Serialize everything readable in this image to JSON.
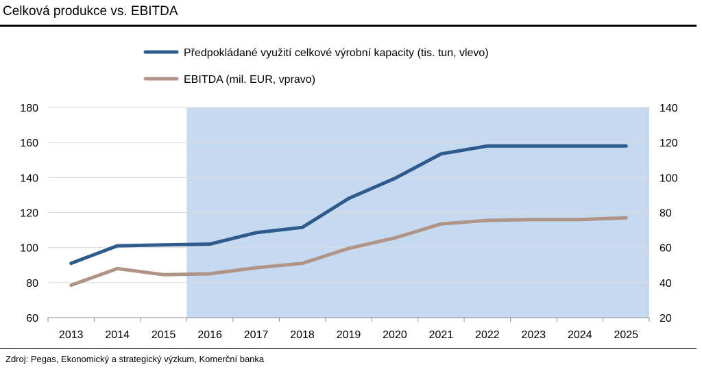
{
  "header": {
    "title": "Celková produkce vs. EBITDA"
  },
  "footer": {
    "source": "Zdroj: Pegas, Ekonomický a strategický výzkum, Komerční banka"
  },
  "chart_data": {
    "type": "line",
    "title": "Celková produkce vs. EBITDA",
    "x": [
      "2013",
      "2014",
      "2015",
      "2016",
      "2017",
      "2018",
      "2019",
      "2020",
      "2021",
      "2022",
      "2023",
      "2024",
      "2025"
    ],
    "series": [
      {
        "name": "Předpokládané využití celkové výrobní kapacity (tis. tun, vlevo)",
        "axis": "left",
        "color": "#2e5a8c",
        "values": [
          91,
          101,
          101.5,
          102,
          108.5,
          111.5,
          128,
          139.5,
          153.5,
          158,
          158,
          158,
          158
        ]
      },
      {
        "name": "EBITDA (mil. EUR, vpravo)",
        "axis": "right",
        "color": "#b09486",
        "values": [
          38.5,
          48,
          44.5,
          45,
          48.5,
          51,
          59.5,
          65.5,
          73.5,
          75.5,
          76,
          76,
          77
        ]
      }
    ],
    "left_axis": {
      "min": 60,
      "max": 180,
      "ticks": [
        "60",
        "80",
        "100",
        "120",
        "140",
        "160",
        "180"
      ]
    },
    "right_axis": {
      "min": 20,
      "max": 140,
      "ticks": [
        "20",
        "40",
        "60",
        "80",
        "100",
        "120",
        "140"
      ]
    },
    "shaded_range": {
      "from": "2016",
      "to": "2025",
      "color": "#c5d9f1"
    },
    "grid": true,
    "legend_placement": "top"
  }
}
